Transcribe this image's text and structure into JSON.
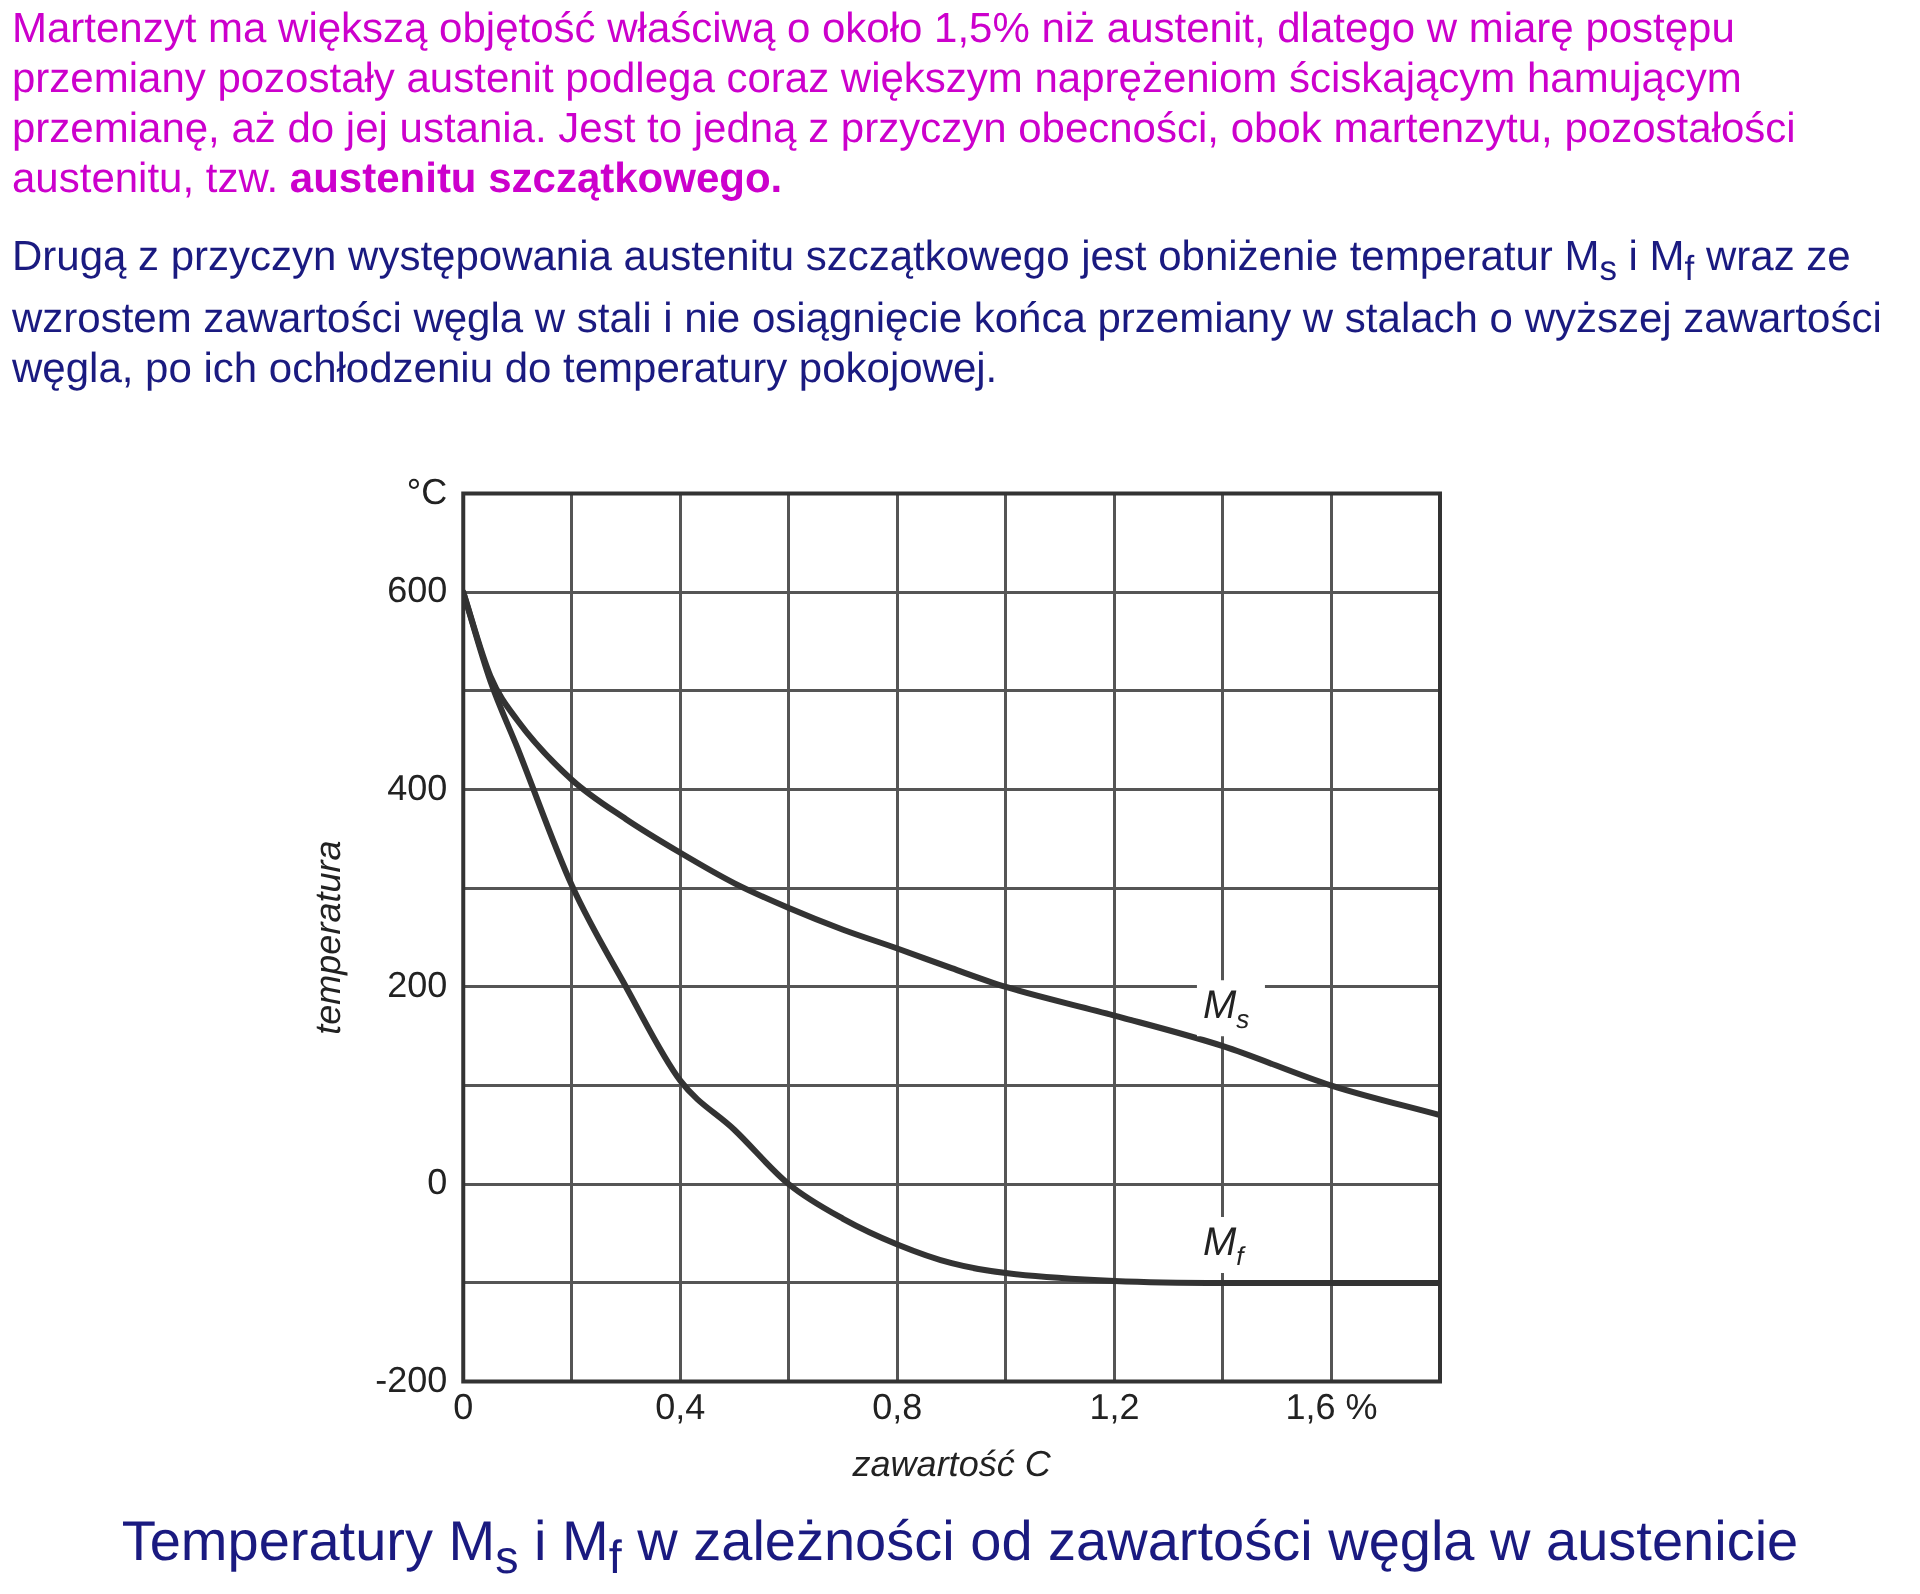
{
  "chart_data": {
    "type": "line",
    "title": "Temperatury M$_{s}$ i M$_{f}$ w zależności od zawartości węgla w austenicie",
    "annotations": [
      "Martenzyt ma większą objętość właściwą o około 1,5% niż austenit, dlatego w miarę postępu przemiany pozostały austenit podlega coraz większym naprężeniom ściskającym hamującym przemianę, aż do jej ustania. Jest to jedną z przyczyn obecności, obok martenzytu, pozostałości austenitu, tzw.",
      "austenitu szczątkowego.",
      "Drugą z przyczyn występowania austenitu szczątkowego jest obniżenie temperatur M$_{s}$ i M$_{f}$ wraz ze wzrostem zawartości węgla w stali i nie osiągnięcie końca  przemiany w stalach o wyższej zawartości węgla, po ich ochłodzeniu do temperatury pokojowej."
    ],
    "xlabel": "zawartość C",
    "ylabel": "temperatura",
    "x": [
      0,
      0.05,
      0.1,
      0.2,
      0.3,
      0.4,
      0.5,
      0.6,
      0.7,
      0.8,
      0.9,
      1.0,
      1.2,
      1.4,
      1.6,
      1.8
    ],
    "series": [
      {
        "name": "M$_{s}$",
        "color": "#333333",
        "values": [
          600,
          515,
          470,
          410,
          370,
          336,
          305,
          280,
          258,
          239,
          219,
          200,
          171,
          140,
          100,
          70
        ]
      },
      {
        "name": "M$_{f}$",
        "color": "#333333",
        "values": [
          600,
          510,
          442,
          303,
          200,
          105,
          55,
          0,
          -35,
          -61,
          -80,
          -90,
          -98,
          -100,
          -100,
          -100
        ]
      }
    ],
    "xlim": [
      0,
      1.8
    ],
    "xticks": [
      0,
      {
        "value": 0.2,
        "label": null
      },
      {
        "value": 0.4,
        "label": "0,4"
      },
      {
        "value": 0.6,
        "label": null
      },
      {
        "value": 0.8,
        "label": "0,8"
      },
      {
        "value": 1.0,
        "label": null
      },
      {
        "value": 1.2,
        "label": "1,2"
      },
      {
        "value": 1.4,
        "label": null
      },
      {
        "value": 1.6,
        "label": "1,6 %"
      },
      {
        "value": 1.8,
        "label": null
      }
    ],
    "ylim": [
      -200,
      700
    ],
    "yticks": [
      -200,
      {
        "value": -100,
        "label": null
      },
      0,
      {
        "value": 100,
        "label": null
      },
      200,
      {
        "value": 300,
        "label": null
      },
      400,
      {
        "value": 500,
        "label": null
      },
      600,
      {
        "value": 700,
        "label": "°C"
      }
    ],
    "grid": true,
    "legend": false,
    "marker": "none",
    "line_style": "solid"
  }
}
